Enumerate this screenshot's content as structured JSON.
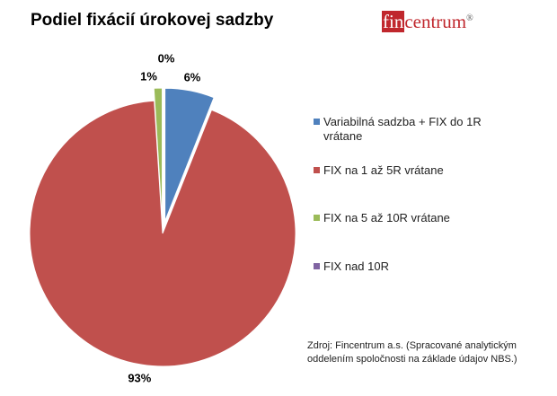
{
  "chart_data": {
    "type": "pie",
    "title": "Podiel fixácií úrokovej sadzby",
    "categories": [
      "Variabilná sadzba + FIX do 1R vrátane",
      "FIX na 1 až 5R vrátane",
      "FIX na 5 až 10R vrátane",
      "FIX nad 10R"
    ],
    "values": [
      6,
      93,
      1,
      0
    ],
    "value_labels": [
      "6%",
      "93%",
      "1%",
      "0%"
    ],
    "colors": [
      "#4f81bd",
      "#c0504d",
      "#9bbb59",
      "#8064a2"
    ],
    "legend": "right"
  },
  "logo": {
    "box": "fin",
    "text": "centrum",
    "mark": "®"
  },
  "source": [
    "Zdroj: Fincentrum a.s. (Spracované analytickým",
    "oddelením spoločnosti na základe údajov NBS.)"
  ]
}
